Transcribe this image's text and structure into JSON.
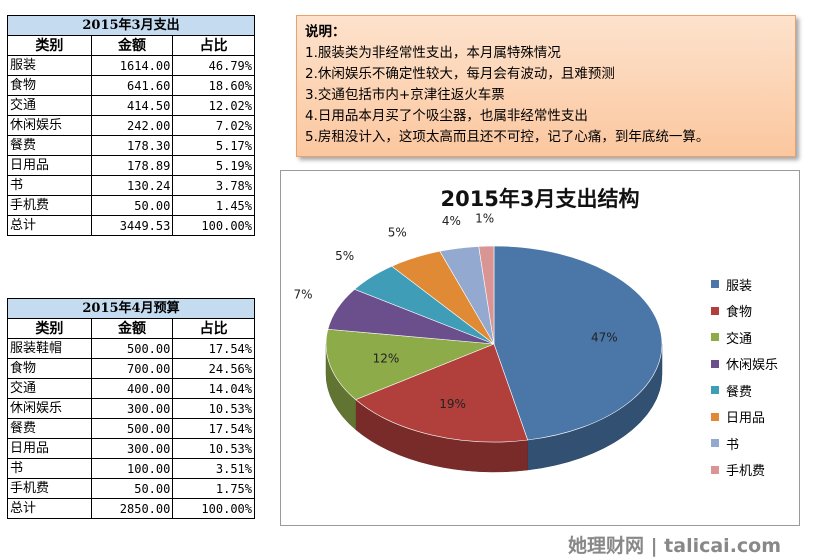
{
  "table_march": {
    "title": "2015年3月支出",
    "headers": [
      "类别",
      "金额",
      "占比"
    ],
    "rows": [
      [
        "服装",
        "1614.00",
        "46.79%"
      ],
      [
        "食物",
        "641.60",
        "18.60%"
      ],
      [
        "交通",
        "414.50",
        "12.02%"
      ],
      [
        "休闲娱乐",
        "242.00",
        "7.02%"
      ],
      [
        "餐费",
        "178.30",
        "5.17%"
      ],
      [
        "日用品",
        "178.89",
        "5.19%"
      ],
      [
        "书",
        "130.24",
        "3.78%"
      ],
      [
        "手机费",
        "50.00",
        "1.45%"
      ],
      [
        "总计",
        "3449.53",
        "100.00%"
      ]
    ]
  },
  "table_april": {
    "title": "2015年4月预算",
    "headers": [
      "类别",
      "金额",
      "占比"
    ],
    "rows": [
      [
        "服装鞋帽",
        "500.00",
        "17.54%"
      ],
      [
        "食物",
        "700.00",
        "24.56%"
      ],
      [
        "交通",
        "400.00",
        "14.04%"
      ],
      [
        "休闲娱乐",
        "300.00",
        "10.53%"
      ],
      [
        "餐费",
        "500.00",
        "17.54%"
      ],
      [
        "日用品",
        "300.00",
        "10.53%"
      ],
      [
        "书",
        "100.00",
        "3.51%"
      ],
      [
        "手机费",
        "50.00",
        "1.75%"
      ],
      [
        "总计",
        "2850.00",
        "100.00%"
      ]
    ]
  },
  "notes": {
    "title": "说明：",
    "items": [
      "1.服装类为非经常性支出，本月属特殊情况",
      "2.休闲娱乐不确定性较大，每月会有波动，且难预测",
      "3.交通包括市内+京津往返火车票",
      "4.日用品本月买了个吸尘器，也属非经常性支出",
      "5.房租没计入，这项太高而且还不可控，记了心痛，到年底统一算。"
    ]
  },
  "chart_data": {
    "type": "pie",
    "title": "2015年3月支出结构",
    "categories": [
      "服装",
      "食物",
      "交通",
      "休闲娱乐",
      "餐费",
      "日用品",
      "书",
      "手机费"
    ],
    "values": [
      1614.0,
      641.6,
      414.5,
      242.0,
      178.3,
      178.89,
      130.24,
      50.0
    ],
    "data_labels": [
      "47%",
      "19%",
      "12%",
      "7%",
      "5%",
      "5%",
      "4%",
      "1%"
    ],
    "colors": [
      "#4a76a8",
      "#b13f3c",
      "#8eab4a",
      "#6b4f8c",
      "#3f9db7",
      "#e08a36",
      "#93a9cf",
      "#d99594"
    ],
    "legend_position": "right",
    "style": "3d"
  },
  "watermark": "她理财网 | talicai.com"
}
